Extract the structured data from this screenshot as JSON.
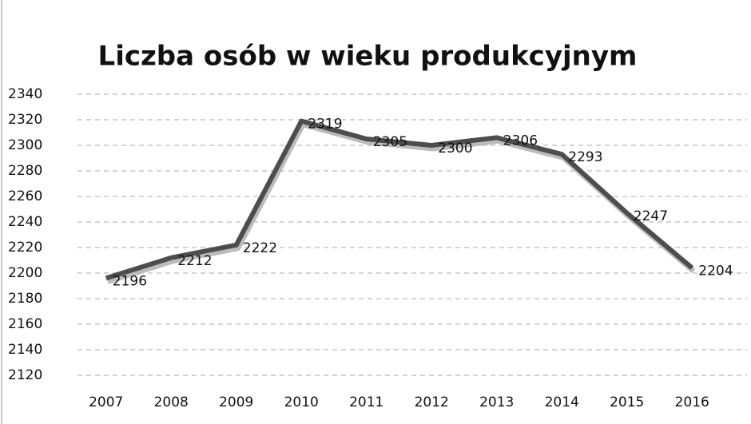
{
  "chart_data": {
    "type": "line",
    "title": "Liczba osób w wieku produkcyjnym",
    "categories": [
      "2007",
      "2008",
      "2009",
      "2010",
      "2011",
      "2012",
      "2013",
      "2014",
      "2015",
      "2016"
    ],
    "series": [
      {
        "name": "Liczba osób w wieku produkcyjnym",
        "color": "#4d4d4d",
        "values": [
          2196,
          2212,
          2222,
          2319,
          2305,
          2300,
          2306,
          2293,
          2247,
          2204
        ]
      }
    ],
    "ylim": [
      2120,
      2340
    ],
    "yticks": [
      2120,
      2140,
      2160,
      2180,
      2200,
      2220,
      2240,
      2260,
      2280,
      2300,
      2320,
      2340
    ],
    "grid": true
  }
}
